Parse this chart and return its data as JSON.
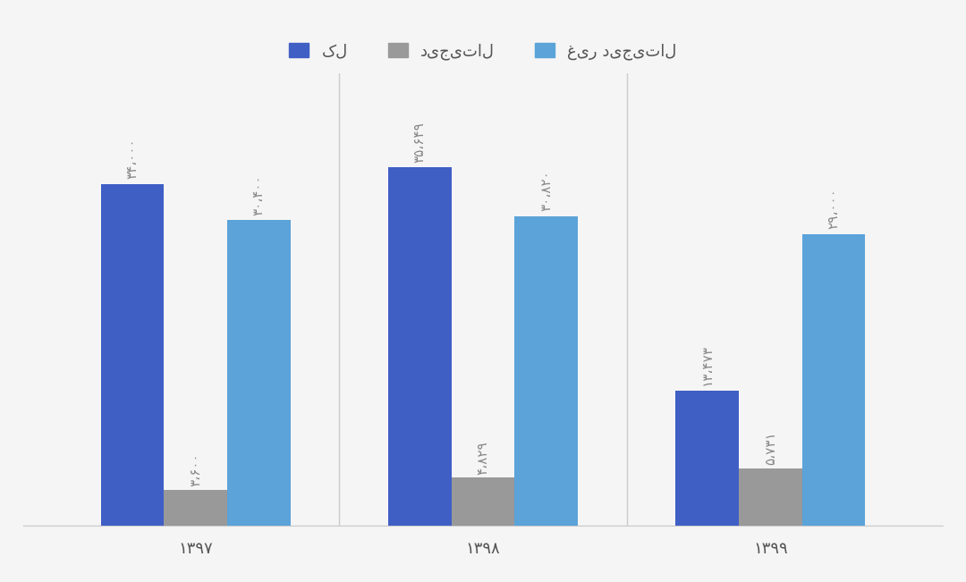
{
  "years": [
    "۱۳۹۷",
    "۱۳۹۸",
    "۱۳۹۹"
  ],
  "kol": [
    34000,
    35649,
    13473
  ],
  "digital": [
    3600,
    4829,
    5731
  ],
  "non_digital": [
    30400,
    30820,
    29000
  ],
  "kol_labels": [
    "۳۴،۰۰۰",
    "۳۵،۶۴۹",
    "۱۳،۴۷۳"
  ],
  "digital_labels": [
    "۳،۶۰۰",
    "۴،۸۲۹",
    "۵،۷۳۱"
  ],
  "non_digital_labels": [
    "۳۰،۴۰۰",
    "۳۰،۸۲۰",
    "۲۹،۰۰۰"
  ],
  "legend_kol": "کل",
  "legend_digital": "دیجیتال",
  "legend_non_digital": "غیر دیجیتال",
  "color_kol": "#3f5fc5",
  "color_digital": "#999999",
  "color_non_digital": "#5ba3d9",
  "bar_width": 0.22,
  "ylim": [
    0,
    45000
  ],
  "bg_color": "#f5f5f5",
  "font_size_label": 11,
  "font_size_axis": 13,
  "font_size_legend": 13
}
